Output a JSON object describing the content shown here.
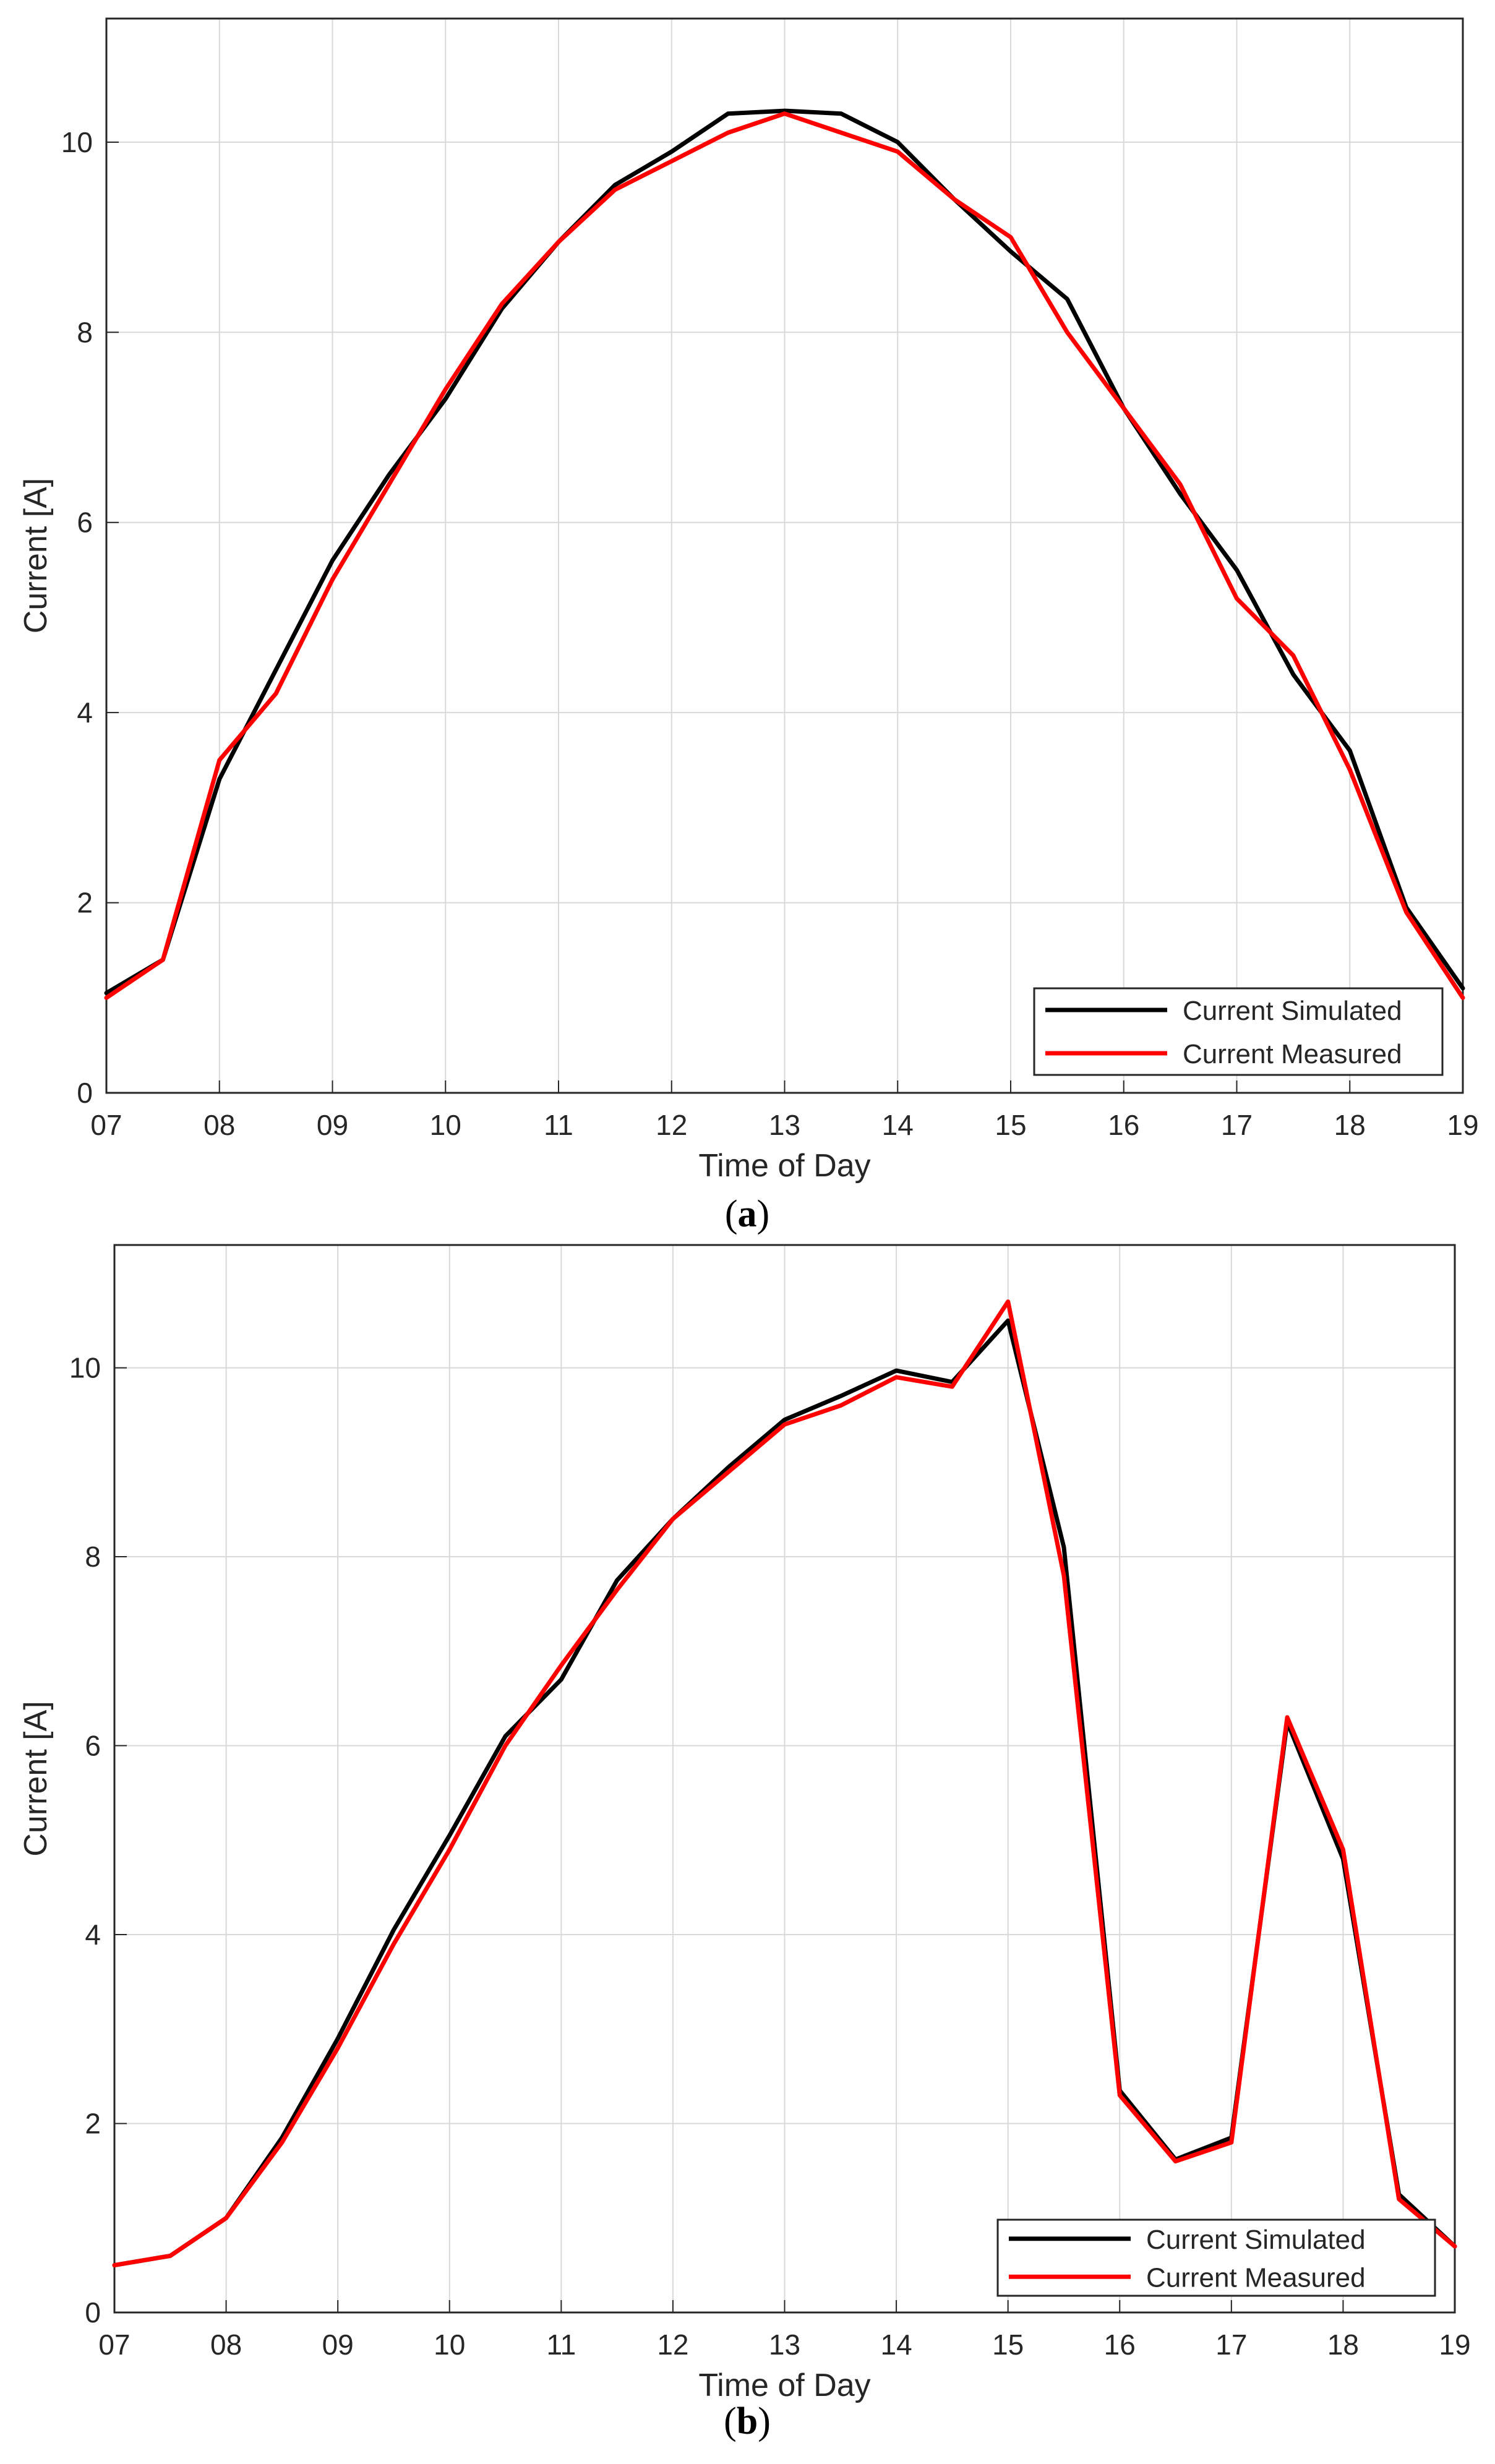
{
  "captions": [
    {
      "open": "(",
      "letter": "a",
      "close": ")"
    },
    {
      "open": "(",
      "letter": "b",
      "close": ")"
    }
  ],
  "colors": {
    "simulated": "#000000",
    "measured": "#ff0000",
    "grid": "#d9d9d9",
    "axis": "#262626",
    "text": "#262626",
    "background": "#ffffff"
  },
  "chart_data": [
    {
      "type": "line",
      "xlabel": "Time of Day",
      "ylabel": "Current [A]",
      "x_ticks": [
        "07",
        "08",
        "09",
        "10",
        "11",
        "12",
        "13",
        "14",
        "15",
        "16",
        "17",
        "18",
        "19"
      ],
      "xlim": [
        7,
        19
      ],
      "ylim": [
        0,
        11.3
      ],
      "y_ticks": [
        0,
        2,
        4,
        6,
        8,
        10
      ],
      "grid": true,
      "legend_position": "bottom-right",
      "x": [
        7,
        7.5,
        8,
        8.5,
        9,
        9.5,
        10,
        10.5,
        11,
        11.5,
        12,
        12.5,
        13,
        13.5,
        14,
        14.5,
        15,
        15.5,
        16,
        16.5,
        17,
        17.5,
        18,
        18.5,
        19
      ],
      "series": [
        {
          "name": "Current Simulated",
          "color": "#000000",
          "values": [
            1.05,
            1.4,
            3.3,
            4.45,
            5.6,
            6.5,
            7.3,
            8.25,
            8.95,
            9.55,
            9.9,
            10.3,
            10.33,
            10.3,
            10.0,
            9.4,
            8.85,
            8.35,
            7.2,
            6.3,
            5.5,
            4.4,
            3.6,
            1.95,
            1.1
          ]
        },
        {
          "name": "Current Measured",
          "color": "#ff0000",
          "values": [
            1.0,
            1.4,
            3.5,
            4.2,
            5.4,
            6.4,
            7.4,
            8.3,
            8.95,
            9.5,
            9.8,
            10.1,
            10.3,
            10.1,
            9.9,
            9.4,
            9.0,
            8.0,
            7.2,
            6.4,
            5.2,
            4.6,
            3.4,
            1.9,
            1.0
          ]
        }
      ]
    },
    {
      "type": "line",
      "xlabel": "Time of Day",
      "ylabel": "Current [A]",
      "x_ticks": [
        "07",
        "08",
        "09",
        "10",
        "11",
        "12",
        "13",
        "14",
        "15",
        "16",
        "17",
        "18",
        "19"
      ],
      "xlim": [
        7,
        19
      ],
      "ylim": [
        0,
        11.3
      ],
      "y_ticks": [
        0,
        2,
        4,
        6,
        8,
        10
      ],
      "grid": true,
      "legend_position": "bottom-right",
      "x": [
        7,
        7.5,
        8,
        8.5,
        9,
        9.5,
        10,
        10.5,
        11,
        11.5,
        12,
        12.5,
        13,
        13.5,
        14,
        14.5,
        15,
        15.5,
        16,
        16.5,
        17,
        17.5,
        18,
        18.5,
        19
      ],
      "series": [
        {
          "name": "Current Simulated",
          "color": "#000000",
          "values": [
            0.5,
            0.6,
            1.0,
            1.85,
            2.9,
            4.05,
            5.05,
            6.1,
            6.7,
            7.75,
            8.4,
            8.95,
            9.45,
            9.7,
            9.97,
            9.85,
            10.5,
            8.1,
            2.35,
            1.62,
            1.85,
            6.25,
            4.8,
            1.25,
            0.7
          ]
        },
        {
          "name": "Current Measured",
          "color": "#ff0000",
          "values": [
            0.5,
            0.6,
            1.0,
            1.8,
            2.8,
            3.9,
            4.9,
            6.0,
            6.85,
            7.65,
            8.4,
            8.9,
            9.4,
            9.6,
            9.9,
            9.8,
            10.7,
            7.8,
            2.3,
            1.6,
            1.8,
            6.3,
            4.9,
            1.2,
            0.7
          ]
        }
      ]
    }
  ]
}
